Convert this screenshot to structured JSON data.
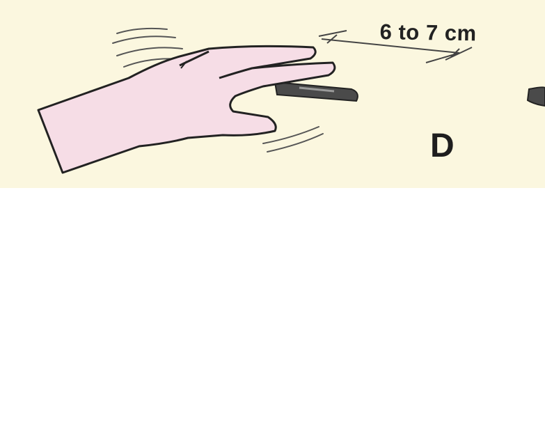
{
  "figure": {
    "panel_letter": "D",
    "measurement_label": "6 to 7 cm",
    "colors": {
      "background": "#fbf7df",
      "skin": "#f6dde6",
      "outline": "#222222",
      "pen": "#4a4a4a"
    },
    "icons": {
      "hand": "hand-icon",
      "pen": "pen-icon",
      "motion_lines": "motion-lines-icon",
      "dimension_line": "dimension-arrow-icon"
    }
  }
}
